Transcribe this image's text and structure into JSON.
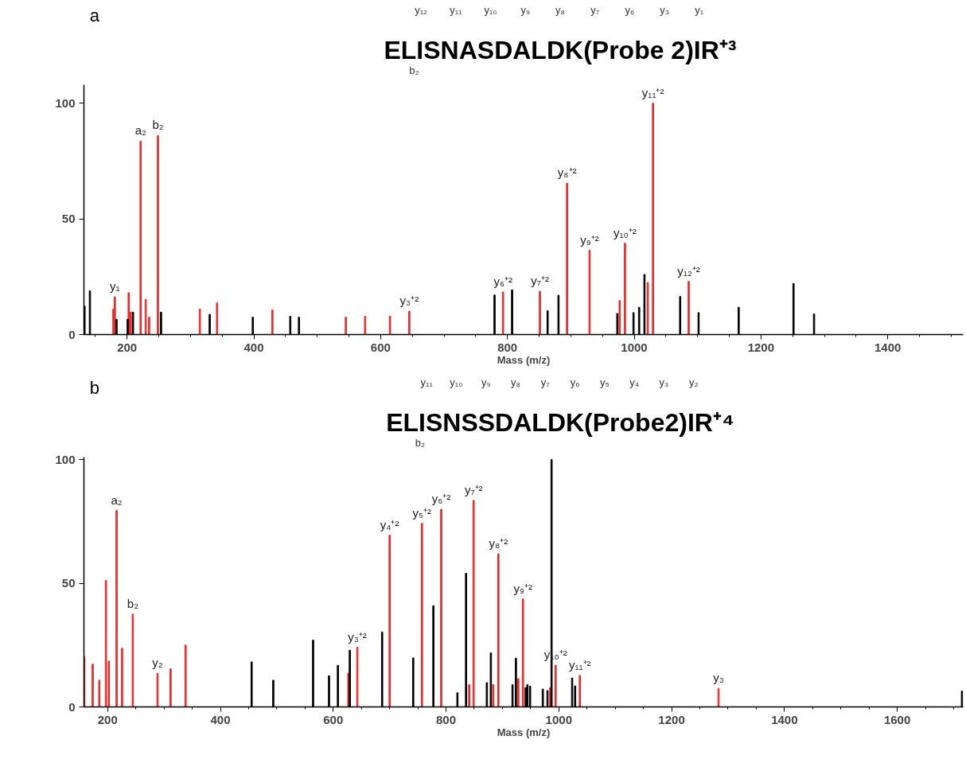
{
  "chart_data": [
    {
      "type": "bar",
      "title": "ELISNASDALDK(Probe 2)IR⁺³",
      "xlabel": "Mass (m/z)",
      "xlim": [
        132,
        1519
      ],
      "xticks": [
        200,
        400,
        600,
        800,
        1000,
        1200,
        1400
      ],
      "ylim": [
        0,
        108
      ],
      "yticks": [
        0,
        50,
        100
      ],
      "grid": false,
      "annotations": [
        "a",
        "y₁₂",
        "y₁₁",
        "y₁₀",
        "y₉",
        "y₈",
        "y₇",
        "y₆",
        "y₃",
        "y₁",
        "b₂"
      ],
      "series": [
        {
          "color": "#ee2a2a",
          "x": [
            178.5,
            180.7,
            202.6,
            205.8,
            221.4,
            229.4,
            234.8,
            248.7,
            314.8,
            342.0,
            429.3,
            545.1,
            575.5,
            614.8,
            645.2,
            793.1,
            851.3,
            894.1,
            929.6,
            977.1,
            985.4,
            1021.4,
            1029.7,
            1086.0
          ],
          "values": [
            11,
            16.3,
            18.1,
            9.7,
            83.6,
            15.2,
            7.5,
            86.0,
            11.0,
            13.7,
            10.6,
            7.5,
            7.9,
            7.9,
            10.1,
            18.4,
            18.7,
            65.4,
            36.4,
            14.7,
            39.5,
            22.5,
            100,
            23.0
          ],
          "value_labels": [
            null,
            "y₁",
            null,
            null,
            "a₂",
            null,
            null,
            "b₂",
            null,
            null,
            null,
            null,
            null,
            null,
            "y₃⁺²",
            "y₆⁺²",
            "y₇⁺²",
            "y₈⁺²",
            "y₉⁺²",
            null,
            "y₁₀⁺²",
            null,
            "y₁₁⁺²",
            "y₁₂⁺²"
          ]
        },
        {
          "color": "#000000",
          "x": [
            132.9,
            141.4,
            183.4,
            201.0,
            209.4,
            253.6,
            330.4,
            398.4,
            457.5,
            471.2,
            779.7,
            807.4,
            863.4,
            880.6,
            973.4,
            998.9,
            1007.8,
            1016.2,
            1072.5,
            1101.6,
            1164.8,
            1251.3,
            1283.7
          ],
          "values": [
            12.3,
            18.9,
            6.6,
            6.6,
            9.7,
            9.7,
            8.7,
            7.5,
            7.9,
            7.5,
            17.1,
            19.3,
            10.3,
            17.0,
            9.1,
            9.5,
            11.8,
            26.0,
            16.5,
            9.5,
            11.8,
            22.1,
            8.9
          ]
        }
      ]
    },
    {
      "type": "bar",
      "title": "ELISNSSDALDK(Probe2)IR⁺⁴",
      "xlabel": "Mass (m/z)",
      "xlim": [
        158,
        1717
      ],
      "xticks": [
        200,
        400,
        600,
        800,
        1000,
        1200,
        1400,
        1600
      ],
      "ylim": [
        0,
        101
      ],
      "yticks": [
        0,
        50,
        100
      ],
      "grid": false,
      "annotations": [
        "b",
        "y₁₁",
        "y₁₀",
        "y₉",
        "y₈",
        "y₇",
        "y₆",
        "y₅",
        "y₄",
        "y₃",
        "y₂",
        "b₂"
      ],
      "series": [
        {
          "color": "#ee2a2a",
          "x": [
            158.6,
            173.5,
            185.2,
            197.0,
            202.1,
            215.9,
            225.6,
            244.6,
            288.5,
            311.6,
            338.2,
            626.8,
            642.7,
            700.0,
            757.3,
            791.5,
            841.1,
            848.9,
            883.7,
            892.8,
            928.1,
            936.4,
            984.8,
            994.3,
            1037.3,
            1283.2
          ],
          "values": [
            20.4,
            17.3,
            10.8,
            51.1,
            18.5,
            79.4,
            23.7,
            37.5,
            13.6,
            15.4,
            25.0,
            13.6,
            24.1,
            69.4,
            74.2,
            79.9,
            9.0,
            83.5,
            9.0,
            61.9,
            11.4,
            43.7,
            7.8,
            16.9,
            12.7,
            7.5
          ],
          "value_labels": [
            null,
            null,
            null,
            null,
            null,
            "a₂",
            null,
            "b₂",
            "y₂",
            null,
            null,
            null,
            "y₃⁺²",
            "y₄⁺²",
            "y₅⁺²",
            "y₆⁺²",
            null,
            "y₇⁺²",
            null,
            "y₈⁺²",
            null,
            "y₉⁺²",
            null,
            "y₁₀⁺²",
            "y₁₁⁺²",
            "y₃"
          ]
        },
        {
          "color": "#000000",
          "x": [
            455.3,
            493.7,
            564.3,
            592.5,
            608.3,
            629.4,
            686.7,
            741.8,
            777.6,
            820.2,
            835.5,
            872.4,
            879.5,
            917.9,
            923.9,
            941.2,
            944.2,
            949.0,
            971.6,
            979.9,
            987.1,
            1023.6,
            1028.9,
            1714.8
          ],
          "values": [
            18.2,
            10.8,
            27.0,
            12.6,
            16.8,
            22.9,
            30.3,
            19.8,
            40.9,
            5.7,
            54.0,
            9.8,
            21.8,
            9.0,
            19.7,
            7.8,
            9.0,
            8.4,
            7.2,
            6.6,
            100,
            11.7,
            8.5,
            6.4
          ]
        }
      ]
    }
  ]
}
